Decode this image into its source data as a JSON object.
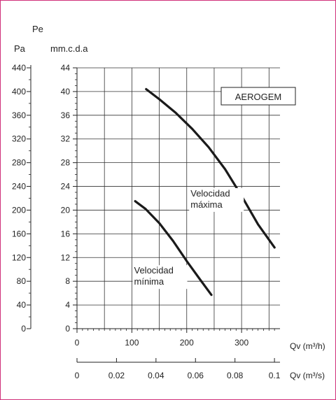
{
  "chart_data": {
    "type": "line",
    "title": "",
    "label_pe": "Pe",
    "unit_pa": "Pa",
    "unit_mmcda": "mm.c.d.a",
    "xlabel": "Qv (m³/h)",
    "xlabel2": "Qv (m³/s)",
    "legend_box": "AEROGEM",
    "xlim": [
      0,
      370
    ],
    "ylim": [
      0,
      44
    ],
    "ylim_pa": [
      0,
      440
    ],
    "xlim2": [
      0,
      0.1028
    ],
    "x_ticks": [
      "0",
      "100",
      "200",
      "300"
    ],
    "x_tick_values": [
      0,
      100,
      200,
      300
    ],
    "x2_ticks": [
      "0",
      "0.02",
      "0.04",
      "0.06",
      "0.08",
      "0.1"
    ],
    "x2_tick_values": [
      0,
      0.02,
      0.04,
      0.06,
      0.08,
      0.1
    ],
    "y_ticks": [
      "0",
      "4",
      "8",
      "12",
      "16",
      "20",
      "24",
      "28",
      "32",
      "36",
      "40",
      "44"
    ],
    "y_tick_values": [
      0,
      4,
      8,
      12,
      16,
      20,
      24,
      28,
      32,
      36,
      40,
      44
    ],
    "y_pa_ticks": [
      "0",
      "40",
      "80",
      "120",
      "160",
      "200",
      "240",
      "280",
      "320",
      "360",
      "400",
      "440"
    ],
    "y_pa_tick_values": [
      0,
      40,
      80,
      120,
      160,
      200,
      240,
      280,
      320,
      360,
      400,
      440
    ],
    "grid": true,
    "series": [
      {
        "label_line1": "Velocidad",
        "label_line2": "máxima",
        "label_at": [
          207,
          22.3
        ],
        "x": [
          126,
          150,
          180,
          210,
          240,
          270,
          300,
          330,
          360
        ],
        "y": [
          40.4,
          38.7,
          36.4,
          33.7,
          30.6,
          26.9,
          22.4,
          17.6,
          13.7
        ]
      },
      {
        "label_line1": "Velocidad",
        "label_line2": "mínima",
        "label_at": [
          104,
          9.3
        ],
        "x": [
          106,
          125,
          150,
          175,
          200,
          225,
          245
        ],
        "y": [
          21.5,
          20.2,
          17.8,
          14.8,
          11.4,
          8.2,
          5.7
        ]
      }
    ]
  }
}
